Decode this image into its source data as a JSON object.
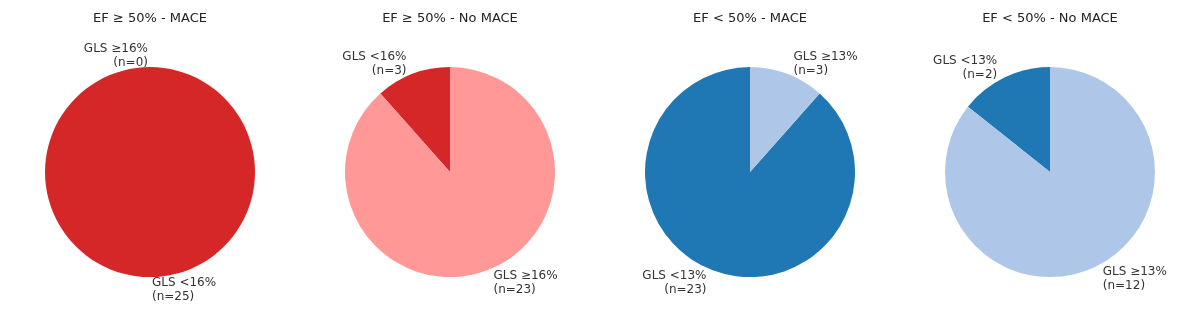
{
  "chart_data": [
    {
      "type": "pie",
      "title": "EF ≥ 50% - MACE",
      "categories": [
        "GLS <16%",
        "GLS ≥16%"
      ],
      "values": [
        25,
        0
      ],
      "colors": [
        "#d62728",
        "#ff9896"
      ],
      "value_labels": [
        "(n=25)",
        "(n=0)"
      ]
    },
    {
      "type": "pie",
      "title": "EF ≥ 50% - No MACE",
      "categories": [
        "GLS <16%",
        "GLS ≥16%"
      ],
      "values": [
        3,
        23
      ],
      "colors": [
        "#d62728",
        "#ff9896"
      ],
      "value_labels": [
        "(n=3)",
        "(n=23)"
      ]
    },
    {
      "type": "pie",
      "title": "EF < 50% - MACE",
      "categories": [
        "GLS <13%",
        "GLS ≥13%"
      ],
      "values": [
        23,
        3
      ],
      "colors": [
        "#1f77b4",
        "#aec7e8"
      ],
      "value_labels": [
        "(n=23)",
        "(n=3)"
      ]
    },
    {
      "type": "pie",
      "title": "EF < 50% - No MACE",
      "categories": [
        "GLS <13%",
        "GLS ≥13%"
      ],
      "values": [
        2,
        12
      ],
      "colors": [
        "#1f77b4",
        "#aec7e8"
      ],
      "value_labels": [
        "(n=2)",
        "(n=12)"
      ]
    }
  ]
}
